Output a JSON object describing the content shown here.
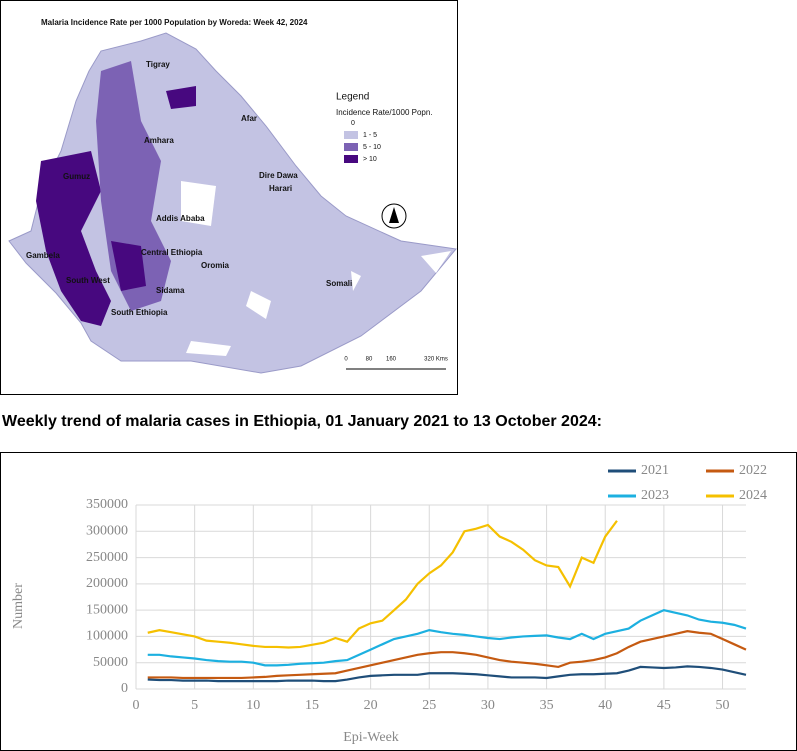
{
  "map": {
    "title": "Malaria Incidence Rate per 1000 Population by Woreda:  Week 42, 2024",
    "regions": [
      "Tigray",
      "Afar",
      "Amhara",
      "Gumuz",
      "Addis Ababa",
      "Dire Dawa",
      "Harari",
      "Gambela",
      "Central Ethiopia",
      "Oromia",
      "South West",
      "Sidama",
      "South Ethiopia",
      "Somali"
    ],
    "legend": {
      "title": "Legend",
      "subtitle": "Incidence Rate/1000 Popn.",
      "items": [
        {
          "label": "0",
          "color": "#ffffff"
        },
        {
          "label": "1 - 5",
          "color": "#c3c3e3"
        },
        {
          "label": "5 - 10",
          "color": "#7c62b4"
        },
        {
          "label": "> 10",
          "color": "#47087f"
        }
      ]
    },
    "scale": [
      "0",
      "80",
      "160",
      "320 Kms"
    ]
  },
  "heading": "Weekly trend of malaria cases in Ethiopia, 01 January 2021 to 13 October 2024:",
  "chart_data": {
    "type": "line",
    "xlabel": "Epi-Week",
    "ylabel": "Number",
    "x": [
      1,
      2,
      3,
      4,
      5,
      6,
      7,
      8,
      9,
      10,
      11,
      12,
      13,
      14,
      15,
      16,
      17,
      18,
      19,
      20,
      21,
      22,
      23,
      24,
      25,
      26,
      27,
      28,
      29,
      30,
      31,
      32,
      33,
      34,
      35,
      36,
      37,
      38,
      39,
      40,
      41,
      42,
      43,
      44,
      45,
      46,
      47,
      48,
      49,
      50,
      51,
      52
    ],
    "xlim": [
      0,
      52
    ],
    "xticks": [
      0,
      5,
      10,
      15,
      20,
      25,
      30,
      35,
      40,
      45,
      50
    ],
    "ylim": [
      0,
      350000
    ],
    "yticks": [
      0,
      50000,
      100000,
      150000,
      200000,
      250000,
      300000,
      350000
    ],
    "grid": true,
    "series": [
      {
        "name": "2021",
        "color": "#1f4e79",
        "values": [
          18000,
          17000,
          17000,
          16000,
          16000,
          16000,
          15000,
          15000,
          15000,
          15000,
          15000,
          15000,
          16000,
          16000,
          16000,
          15000,
          15000,
          18000,
          22000,
          25000,
          26000,
          27000,
          27000,
          27000,
          30000,
          30000,
          30000,
          29000,
          28000,
          26000,
          24000,
          22000,
          22000,
          22000,
          21000,
          24000,
          27000,
          28000,
          28000,
          29000,
          30000,
          35000,
          42000,
          41000,
          40000,
          41000,
          43000,
          42000,
          40000,
          37000,
          32000,
          27000
        ]
      },
      {
        "name": "2022",
        "color": "#c55a11",
        "values": [
          22000,
          22000,
          22000,
          21000,
          21000,
          21000,
          21000,
          21000,
          21000,
          22000,
          23000,
          25000,
          26000,
          27000,
          28000,
          29000,
          30000,
          35000,
          40000,
          45000,
          50000,
          55000,
          60000,
          65000,
          68000,
          70000,
          70000,
          68000,
          65000,
          60000,
          55000,
          52000,
          50000,
          48000,
          45000,
          42000,
          50000,
          52000,
          55000,
          60000,
          68000,
          80000,
          90000,
          95000,
          100000,
          105000,
          110000,
          107000,
          105000,
          95000,
          85000,
          75000
        ]
      },
      {
        "name": "2023",
        "color": "#1cb0e0",
        "values": [
          65000,
          65000,
          62000,
          60000,
          58000,
          55000,
          53000,
          52000,
          52000,
          50000,
          45000,
          45000,
          46000,
          48000,
          49000,
          50000,
          53000,
          55000,
          65000,
          75000,
          85000,
          95000,
          100000,
          105000,
          112000,
          108000,
          105000,
          103000,
          100000,
          97000,
          95000,
          98000,
          100000,
          101000,
          102000,
          98000,
          95000,
          105000,
          95000,
          105000,
          110000,
          115000,
          130000,
          140000,
          150000,
          145000,
          140000,
          132000,
          128000,
          126000,
          122000,
          115000
        ]
      },
      {
        "name": "2024",
        "color": "#f5c000",
        "values": [
          107000,
          112000,
          108000,
          104000,
          100000,
          92000,
          90000,
          88000,
          85000,
          82000,
          80000,
          80000,
          79000,
          80000,
          84000,
          88000,
          97000,
          90000,
          115000,
          125000,
          130000,
          150000,
          170000,
          200000,
          220000,
          235000,
          260000,
          300000,
          305000,
          312000,
          290000,
          280000,
          265000,
          245000,
          235000,
          232000,
          195000,
          250000,
          240000,
          290000,
          320000,
          null,
          null,
          null,
          null,
          null,
          null,
          null,
          null,
          null,
          null,
          null
        ]
      }
    ]
  }
}
